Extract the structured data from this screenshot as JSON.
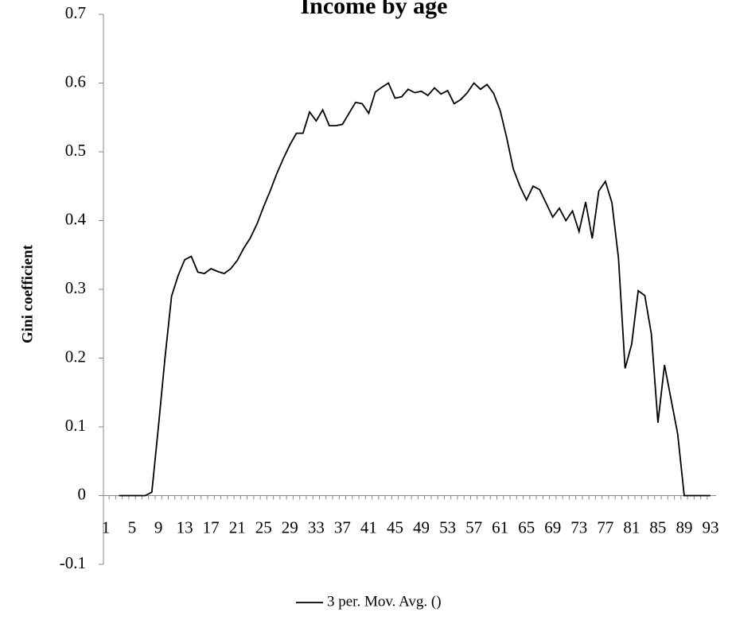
{
  "chart_data": {
    "type": "line",
    "title": "Income by age",
    "ylabel": "Gini coefficient",
    "categories": [
      1,
      null,
      null,
      null,
      5,
      null,
      null,
      null,
      9,
      null,
      null,
      null,
      13,
      null,
      null,
      null,
      17,
      null,
      null,
      null,
      21,
      null,
      null,
      null,
      25,
      null,
      null,
      null,
      29,
      null,
      null,
      null,
      33,
      null,
      null,
      null,
      37,
      null,
      null,
      null,
      41,
      null,
      null,
      null,
      45,
      null,
      null,
      null,
      49,
      null,
      null,
      null,
      53,
      null,
      null,
      null,
      57,
      null,
      null,
      null,
      61,
      null,
      null,
      null,
      65,
      null,
      null,
      null,
      69,
      null,
      null,
      null,
      73,
      null,
      null,
      null,
      77,
      null,
      null,
      null,
      81,
      null,
      null,
      null,
      85,
      null,
      null,
      null,
      89,
      null,
      null,
      null,
      93
    ],
    "series": [
      {
        "name": "3 per. Mov. Avg. ()",
        "color": "#000000",
        "values": [
          null,
          null,
          0,
          0,
          0,
          0,
          0,
          0.005,
          0.1,
          0.2,
          0.29,
          0.32,
          0.343,
          0.348,
          0.325,
          0.323,
          0.33,
          0.326,
          0.323,
          0.33,
          0.342,
          0.36,
          0.375,
          0.395,
          0.42,
          0.443,
          0.468,
          0.49,
          0.51,
          0.527,
          0.527,
          0.558,
          0.545,
          0.561,
          0.538,
          0.538,
          0.54,
          0.556,
          0.572,
          0.57,
          0.556,
          0.587,
          0.594,
          0.6,
          0.578,
          0.58,
          0.591,
          0.586,
          0.588,
          0.582,
          0.593,
          0.584,
          0.589,
          0.57,
          0.576,
          0.586,
          0.6,
          0.591,
          0.598,
          0.585,
          0.56,
          0.52,
          0.475,
          0.45,
          0.43,
          0.45,
          0.445,
          0.425,
          0.405,
          0.418,
          0.4,
          0.414,
          0.384,
          0.427,
          0.374,
          0.443,
          0.457,
          0.426,
          0.345,
          0.185,
          0.22,
          0.298,
          0.291,
          0.235,
          0.106,
          0.19,
          0.14,
          0.09,
          0,
          0,
          0,
          0,
          0
        ]
      }
    ],
    "ylim": [
      -0.1,
      0.7
    ],
    "yticks": [
      -0.1,
      0,
      0.1,
      0.2,
      0.3,
      0.4,
      0.5,
      0.6,
      0.7
    ],
    "grid": false,
    "legend": "bottom"
  }
}
